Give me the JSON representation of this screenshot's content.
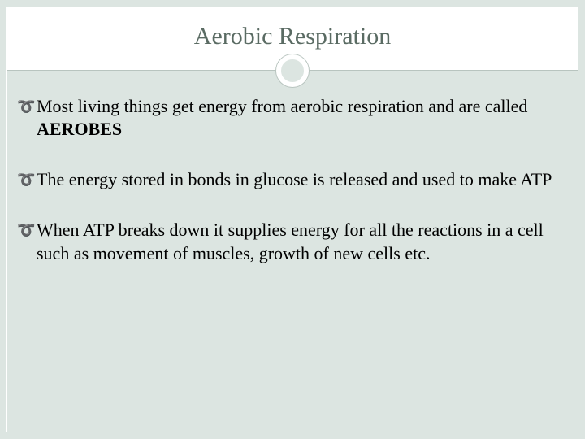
{
  "slide": {
    "title": "Aerobic Respiration",
    "bullets": [
      {
        "prefix": "Most living things get energy from aerobic respiration and are called ",
        "bold": "AEROBES",
        "suffix": ""
      },
      {
        "prefix": "The energy stored in bonds in glucose is released and used to make ATP",
        "bold": "",
        "suffix": ""
      },
      {
        "prefix": "When ATP breaks down it supplies energy for all the reactions in a cell such as movement of muscles, growth of new cells etc.",
        "bold": "",
        "suffix": ""
      }
    ],
    "colors": {
      "background": "#dce5e1",
      "title_band": "#ffffff",
      "title_text": "#5a6b63",
      "body_text": "#000000",
      "bullet_glyph": "#7a8a82",
      "border": "#b8c4bf"
    },
    "typography": {
      "title_fontsize": 30,
      "body_fontsize": 22,
      "font_family": "Georgia"
    },
    "bullet_symbol": "✒"
  }
}
